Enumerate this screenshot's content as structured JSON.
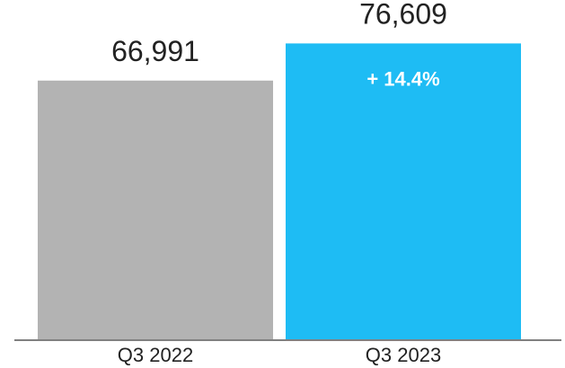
{
  "chart_data": {
    "type": "bar",
    "title": "",
    "xlabel": "",
    "ylabel": "",
    "categories": [
      "Q3 2022",
      "Q3 2023"
    ],
    "values": [
      66991,
      76609
    ],
    "value_labels": [
      "66,991",
      "76,609"
    ],
    "annotations": [
      {
        "category": "Q3 2023",
        "text": "+ 14.4%"
      }
    ],
    "ylim": [
      0,
      86000
    ],
    "grid": false,
    "legend": "none",
    "colors": {
      "bars": [
        "#b3b3b3",
        "#1ebcf4"
      ],
      "axis": "#808080",
      "text": "#222222",
      "annotation_text": "#ffffff"
    }
  }
}
